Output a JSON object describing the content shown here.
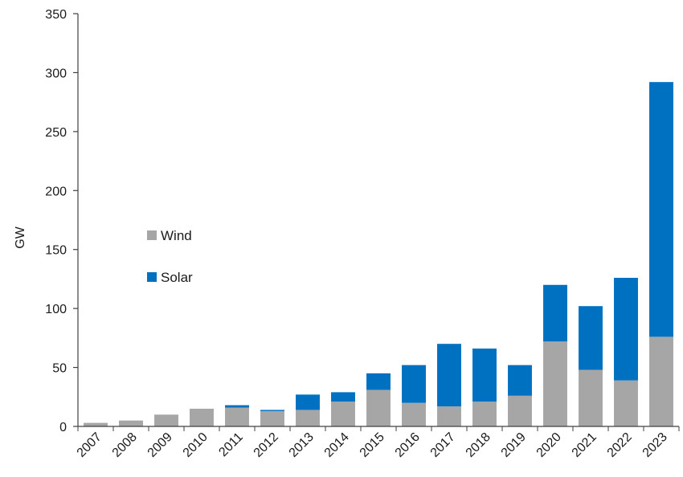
{
  "chart_data": {
    "type": "bar",
    "stacked": true,
    "ylabel": "GW",
    "xlabel": "",
    "title": "",
    "ylim": [
      0,
      350
    ],
    "yticks": [
      0,
      50,
      100,
      150,
      200,
      250,
      300,
      350
    ],
    "categories": [
      "2007",
      "2008",
      "2009",
      "2010",
      "2011",
      "2012",
      "2013",
      "2014",
      "2015",
      "2016",
      "2017",
      "2018",
      "2019",
      "2020",
      "2021",
      "2022",
      "2023"
    ],
    "series": [
      {
        "name": "Wind",
        "color": "#a6a6a6",
        "values": [
          3,
          5,
          10,
          15,
          16,
          13,
          14,
          21,
          31,
          20,
          17,
          21,
          26,
          72,
          48,
          39,
          76
        ]
      },
      {
        "name": "Solar",
        "color": "#0070c0",
        "values": [
          0,
          0,
          0,
          0,
          2,
          1,
          13,
          8,
          14,
          32,
          53,
          45,
          26,
          48,
          54,
          87,
          216
        ]
      }
    ],
    "legend": {
      "placement": "middle-left"
    },
    "grid": false
  }
}
